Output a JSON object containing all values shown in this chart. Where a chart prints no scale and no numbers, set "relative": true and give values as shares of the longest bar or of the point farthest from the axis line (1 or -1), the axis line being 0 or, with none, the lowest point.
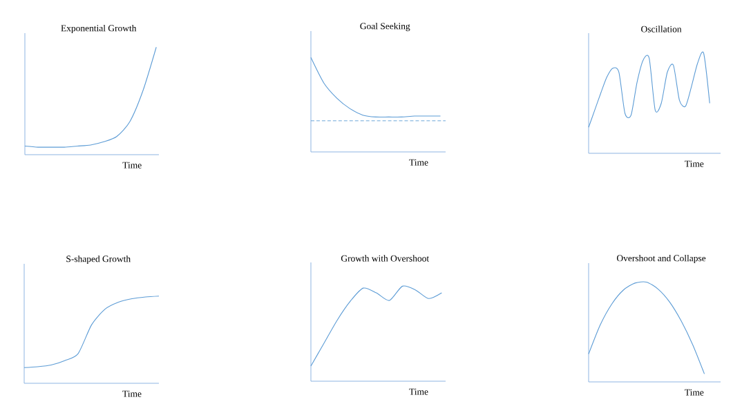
{
  "chart_data": [
    {
      "type": "line",
      "title": "Exponential Growth",
      "xlabel": "Time",
      "relative": true,
      "categories": [
        null,
        null,
        null,
        null,
        null,
        null,
        null,
        null,
        null,
        null,
        null
      ],
      "series": [
        {
          "color": "#5b9bd5",
          "values": [
            0.08,
            0.07,
            0.07,
            0.07,
            0.08,
            0.09,
            0.12,
            0.17,
            0.31,
            0.6,
            1.0
          ]
        }
      ]
    },
    {
      "type": "line",
      "title": "Goal Seeking",
      "xlabel": "Time",
      "relative": true,
      "categories": [
        null,
        null,
        null,
        null,
        null,
        null,
        null,
        null,
        null,
        null,
        null
      ],
      "series": [
        {
          "color": "#5b9bd5",
          "values": [
            1.0,
            0.73,
            0.57,
            0.46,
            0.39,
            0.37,
            0.37,
            0.37,
            0.38,
            0.38,
            0.38
          ]
        }
      ],
      "ref_lines": [
        {
          "axis": "y",
          "value": 0.33,
          "color": "#5b9bd5",
          "line_style": "dashed"
        }
      ]
    },
    {
      "type": "line",
      "title": "Oscillation",
      "xlabel": "Time",
      "relative": true,
      "categories": [
        null,
        null,
        null,
        null,
        null,
        null,
        null,
        null,
        null,
        null,
        null,
        null,
        null,
        null,
        null,
        null,
        null,
        null,
        null,
        null,
        null
      ],
      "series": [
        {
          "color": "#5b9bd5",
          "values": [
            0.26,
            0.43,
            0.6,
            0.76,
            0.85,
            0.81,
            0.4,
            0.38,
            0.71,
            0.93,
            0.95,
            0.43,
            0.5,
            0.81,
            0.88,
            0.53,
            0.47,
            0.67,
            0.9,
            1.0,
            0.5
          ]
        }
      ]
    },
    {
      "type": "line",
      "title": "S-shaped Growth",
      "xlabel": "Time",
      "relative": true,
      "categories": [
        null,
        null,
        null,
        null,
        null,
        null,
        null,
        null,
        null,
        null,
        null
      ],
      "series": [
        {
          "color": "#5b9bd5",
          "values": [
            0.18,
            0.19,
            0.21,
            0.26,
            0.34,
            0.67,
            0.85,
            0.93,
            0.97,
            0.99,
            1.0
          ]
        }
      ]
    },
    {
      "type": "line",
      "title": "Growth with Overshoot",
      "xlabel": "Time",
      "relative": true,
      "categories": [
        null,
        null,
        null,
        null,
        null,
        null,
        null,
        null,
        null,
        null,
        null
      ],
      "series": [
        {
          "color": "#5b9bd5",
          "values": [
            0.16,
            0.4,
            0.64,
            0.84,
            0.98,
            0.93,
            0.85,
            1.0,
            0.96,
            0.87,
            0.93
          ]
        }
      ]
    },
    {
      "type": "line",
      "title": "Overshoot and Collapse",
      "xlabel": "Time",
      "relative": true,
      "categories": [
        null,
        null,
        null,
        null,
        null,
        null,
        null,
        null,
        null,
        null,
        null
      ],
      "series": [
        {
          "color": "#5b9bd5",
          "values": [
            0.28,
            0.57,
            0.78,
            0.92,
            0.99,
            1.0,
            0.93,
            0.8,
            0.61,
            0.37,
            0.08
          ]
        }
      ]
    }
  ]
}
